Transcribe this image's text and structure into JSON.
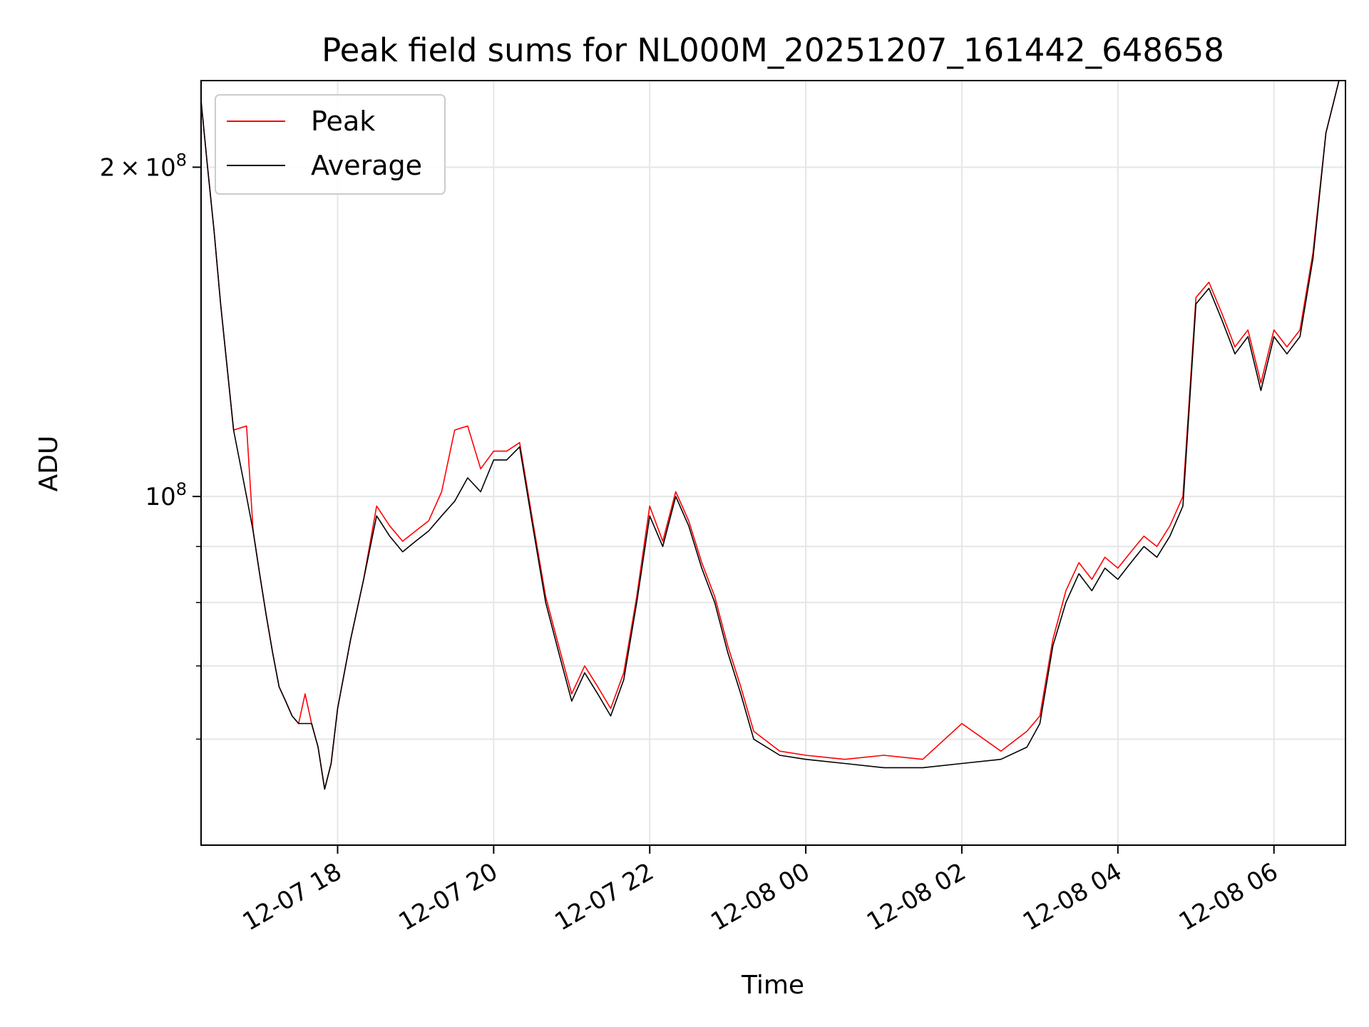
{
  "chart_data": {
    "type": "line",
    "title": "Peak field sums for NL000M_20251207_161442_648658",
    "xlabel": "Time",
    "ylabel": "ADU",
    "y_scale": "log",
    "ylim": [
      48000000,
      240000000
    ],
    "xlim": [
      "2025-12-07 16:15",
      "2025-12-08 06:55"
    ],
    "grid": true,
    "legend_position": "top-left",
    "x_ticks": [
      {
        "value": "2025-12-07 18:00",
        "label": "12-07 18"
      },
      {
        "value": "2025-12-07 20:00",
        "label": "12-07 20"
      },
      {
        "value": "2025-12-07 22:00",
        "label": "12-07 22"
      },
      {
        "value": "2025-12-08 00:00",
        "label": "12-08 00"
      },
      {
        "value": "2025-12-08 02:00",
        "label": "12-08 02"
      },
      {
        "value": "2025-12-08 04:00",
        "label": "12-08 04"
      },
      {
        "value": "2025-12-08 06:00",
        "label": "12-08 06"
      }
    ],
    "y_ticks": [
      {
        "value": 100000000,
        "base": "10",
        "exp": "8"
      },
      {
        "value": 200000000,
        "mult": "2",
        "base": "10",
        "exp": "8"
      }
    ],
    "y_minor_ticks": [
      60000000,
      70000000,
      80000000,
      90000000
    ],
    "series": [
      {
        "name": "Peak",
        "color": "#ff0000"
      },
      {
        "name": "Average",
        "color": "#000000"
      }
    ],
    "x": [
      "2025-12-07 16:15",
      "2025-12-07 16:20",
      "2025-12-07 16:25",
      "2025-12-07 16:30",
      "2025-12-07 16:40",
      "2025-12-07 16:50",
      "2025-12-07 16:55",
      "2025-12-07 17:00",
      "2025-12-07 17:05",
      "2025-12-07 17:10",
      "2025-12-07 17:15",
      "2025-12-07 17:20",
      "2025-12-07 17:25",
      "2025-12-07 17:30",
      "2025-12-07 17:35",
      "2025-12-07 17:40",
      "2025-12-07 17:45",
      "2025-12-07 17:50",
      "2025-12-07 17:55",
      "2025-12-07 18:00",
      "2025-12-07 18:10",
      "2025-12-07 18:20",
      "2025-12-07 18:30",
      "2025-12-07 18:40",
      "2025-12-07 18:50",
      "2025-12-07 19:00",
      "2025-12-07 19:10",
      "2025-12-07 19:20",
      "2025-12-07 19:30",
      "2025-12-07 19:40",
      "2025-12-07 19:50",
      "2025-12-07 20:00",
      "2025-12-07 20:10",
      "2025-12-07 20:20",
      "2025-12-07 20:30",
      "2025-12-07 20:40",
      "2025-12-07 20:50",
      "2025-12-07 21:00",
      "2025-12-07 21:10",
      "2025-12-07 21:20",
      "2025-12-07 21:30",
      "2025-12-07 21:40",
      "2025-12-07 21:50",
      "2025-12-07 22:00",
      "2025-12-07 22:10",
      "2025-12-07 22:20",
      "2025-12-07 22:30",
      "2025-12-07 22:40",
      "2025-12-07 22:50",
      "2025-12-07 23:00",
      "2025-12-07 23:10",
      "2025-12-07 23:20",
      "2025-12-07 23:40",
      "2025-12-08 00:00",
      "2025-12-08 00:30",
      "2025-12-08 01:00",
      "2025-12-08 01:30",
      "2025-12-08 02:00",
      "2025-12-08 02:30",
      "2025-12-08 02:50",
      "2025-12-08 03:00",
      "2025-12-08 03:10",
      "2025-12-08 03:20",
      "2025-12-08 03:30",
      "2025-12-08 03:40",
      "2025-12-08 03:50",
      "2025-12-08 04:00",
      "2025-12-08 04:10",
      "2025-12-08 04:20",
      "2025-12-08 04:30",
      "2025-12-08 04:40",
      "2025-12-08 04:50",
      "2025-12-08 05:00",
      "2025-12-08 05:10",
      "2025-12-08 05:20",
      "2025-12-08 05:30",
      "2025-12-08 05:40",
      "2025-12-08 05:50",
      "2025-12-08 06:00",
      "2025-12-08 06:10",
      "2025-12-08 06:20",
      "2025-12-08 06:30",
      "2025-12-08 06:40",
      "2025-12-08 06:50"
    ],
    "average": [
      230000000,
      200000000,
      175000000,
      150000000,
      115000000,
      100000000,
      93000000,
      85000000,
      78000000,
      72000000,
      67000000,
      65000000,
      63000000,
      62000000,
      62000000,
      62000000,
      59000000,
      54000000,
      57000000,
      64000000,
      74000000,
      84000000,
      96000000,
      92000000,
      89000000,
      91000000,
      93000000,
      96000000,
      99000000,
      104000000,
      101000000,
      108000000,
      108000000,
      111000000,
      94000000,
      80000000,
      72000000,
      65000000,
      69000000,
      66000000,
      63000000,
      68000000,
      80000000,
      96000000,
      90000000,
      100000000,
      94000000,
      86000000,
      80000000,
      72000000,
      66000000,
      60000000,
      58000000,
      57500000,
      57000000,
      56500000,
      56500000,
      57000000,
      57500000,
      59000000,
      62000000,
      73000000,
      80000000,
      85000000,
      82000000,
      86000000,
      84000000,
      87000000,
      90000000,
      88000000,
      92000000,
      98000000,
      150000000,
      155000000,
      145000000,
      135000000,
      140000000,
      125000000,
      140000000,
      135000000,
      140000000,
      165000000,
      215000000,
      240000000
    ],
    "peak": [
      230000000,
      200000000,
      175000000,
      150000000,
      115000000,
      116000000,
      93000000,
      85000000,
      78000000,
      72000000,
      67000000,
      65000000,
      63000000,
      62000000,
      66000000,
      62000000,
      59000000,
      54000000,
      57000000,
      64000000,
      74000000,
      84000000,
      98000000,
      94000000,
      91000000,
      93000000,
      95000000,
      101000000,
      115000000,
      116000000,
      106000000,
      110000000,
      110000000,
      112000000,
      95000000,
      81000000,
      73000000,
      66000000,
      70000000,
      67000000,
      64000000,
      69000000,
      81000000,
      98000000,
      91000000,
      101000000,
      95000000,
      87000000,
      81000000,
      73000000,
      67000000,
      61000000,
      58500000,
      58000000,
      57500000,
      58000000,
      57500000,
      62000000,
      58500000,
      61000000,
      63000000,
      74000000,
      82000000,
      87000000,
      84000000,
      88000000,
      86000000,
      89000000,
      92000000,
      90000000,
      94000000,
      100000000,
      152000000,
      157000000,
      147000000,
      137000000,
      142000000,
      127000000,
      142000000,
      137000000,
      142000000,
      167000000,
      215000000,
      240000000
    ]
  }
}
